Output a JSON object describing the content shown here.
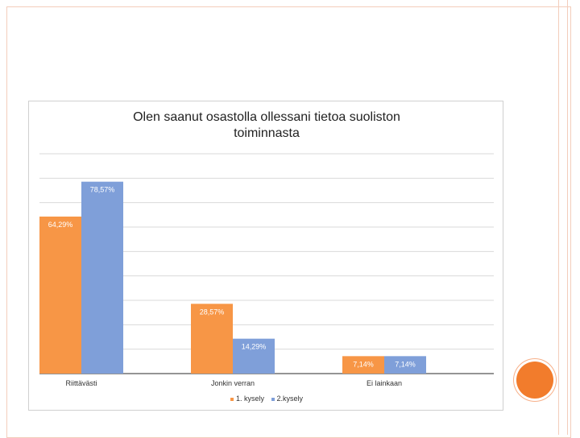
{
  "chart_data": {
    "type": "bar",
    "title": "Olen saanut osastolla ollessani tietoa suoliston\ntoiminnasta",
    "categories": [
      "Riittävästi",
      "Jonkin verran",
      "Ei lainkaan"
    ],
    "series": [
      {
        "name": "1. kysely",
        "values": [
          64.29,
          28.57,
          7.14
        ],
        "labels": [
          "64,29%",
          "28,57%",
          "7,14%"
        ],
        "color": "#f79646"
      },
      {
        "name": "2.kysely",
        "values": [
          78.57,
          14.29,
          7.14
        ],
        "labels": [
          "78,57%",
          "14,29%",
          "7,14%"
        ],
        "color": "#7f9fd9"
      }
    ],
    "ylim": [
      0,
      90
    ],
    "grid": true,
    "legend_position": "bottom"
  },
  "decor": {
    "frame_color": "#f3cdbb",
    "accent_color": "#f27c2c"
  }
}
